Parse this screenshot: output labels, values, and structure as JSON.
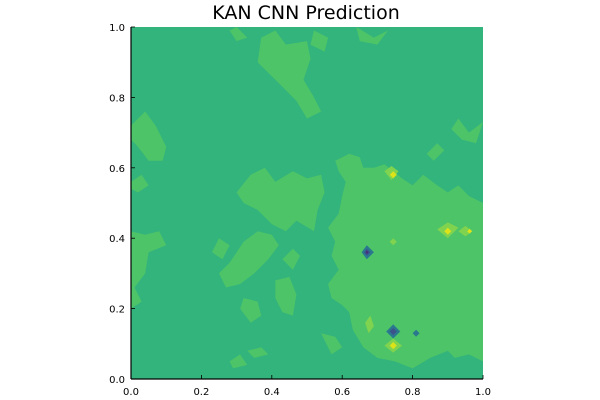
{
  "chart_data": {
    "type": "heatmap",
    "subtype": "filled-contour",
    "title": "KAN CNN Prediction",
    "xlabel": "",
    "ylabel": "",
    "xlim": [
      0.0,
      1.0
    ],
    "ylim": [
      0.0,
      1.0
    ],
    "xticks": [
      "0.0",
      "0.2",
      "0.4",
      "0.6",
      "0.8",
      "1.0"
    ],
    "yticks": [
      "0.0",
      "0.2",
      "0.4",
      "0.6",
      "0.8",
      "1.0"
    ],
    "grid": false,
    "colormap": "viridis",
    "colors": {
      "background_level": "#32b47c",
      "raised_level": "#4ec468",
      "high_level": "#7fd34e",
      "peak_level": "#dce319",
      "low_level": "#2a788e",
      "very_low_level": "#3b528b",
      "min_level": "#472c7a"
    },
    "regions": [
      {
        "level": "raised",
        "points": [
          [
            0.37,
            0.97
          ],
          [
            0.41,
            0.99
          ],
          [
            0.44,
            0.95
          ],
          [
            0.5,
            0.96
          ],
          [
            0.51,
            0.91
          ],
          [
            0.49,
            0.85
          ],
          [
            0.52,
            0.8
          ],
          [
            0.54,
            0.76
          ],
          [
            0.5,
            0.74
          ],
          [
            0.47,
            0.79
          ],
          [
            0.43,
            0.83
          ],
          [
            0.4,
            0.86
          ],
          [
            0.36,
            0.9
          ]
        ]
      },
      {
        "level": "raised",
        "points": [
          [
            0.52,
            0.99
          ],
          [
            0.56,
            0.97
          ],
          [
            0.55,
            0.93
          ],
          [
            0.51,
            0.95
          ]
        ]
      },
      {
        "level": "raised",
        "points": [
          [
            0.3,
            1.0
          ],
          [
            0.33,
            0.97
          ],
          [
            0.3,
            0.96
          ],
          [
            0.28,
            0.99
          ]
        ]
      },
      {
        "level": "raised",
        "points": [
          [
            0.64,
            1.0
          ],
          [
            0.69,
            0.97
          ],
          [
            0.73,
            0.99
          ],
          [
            0.7,
            0.95
          ],
          [
            0.65,
            0.96
          ]
        ]
      },
      {
        "level": "raised",
        "points": [
          [
            0.0,
            0.72
          ],
          [
            0.04,
            0.76
          ],
          [
            0.07,
            0.72
          ],
          [
            0.1,
            0.66
          ],
          [
            0.09,
            0.62
          ],
          [
            0.05,
            0.62
          ],
          [
            0.02,
            0.66
          ],
          [
            0.0,
            0.68
          ]
        ]
      },
      {
        "level": "raised",
        "points": [
          [
            0.93,
            0.74
          ],
          [
            0.96,
            0.7
          ],
          [
            1.0,
            0.73
          ],
          [
            0.98,
            0.67
          ],
          [
            0.94,
            0.68
          ],
          [
            0.91,
            0.71
          ]
        ]
      },
      {
        "level": "raised",
        "points": [
          [
            0.0,
            0.56
          ],
          [
            0.03,
            0.58
          ],
          [
            0.05,
            0.55
          ],
          [
            0.02,
            0.53
          ],
          [
            0.0,
            0.54
          ]
        ]
      },
      {
        "level": "raised",
        "points": [
          [
            0.34,
            0.58
          ],
          [
            0.38,
            0.6
          ],
          [
            0.41,
            0.56
          ],
          [
            0.46,
            0.59
          ],
          [
            0.5,
            0.57
          ],
          [
            0.54,
            0.58
          ],
          [
            0.55,
            0.53
          ],
          [
            0.53,
            0.48
          ],
          [
            0.52,
            0.42
          ],
          [
            0.47,
            0.45
          ],
          [
            0.44,
            0.42
          ],
          [
            0.4,
            0.44
          ],
          [
            0.36,
            0.48
          ],
          [
            0.32,
            0.5
          ],
          [
            0.3,
            0.53
          ]
        ]
      },
      {
        "level": "raised",
        "points": [
          [
            0.32,
            0.39
          ],
          [
            0.36,
            0.42
          ],
          [
            0.4,
            0.41
          ],
          [
            0.42,
            0.38
          ],
          [
            0.39,
            0.34
          ],
          [
            0.35,
            0.3
          ],
          [
            0.31,
            0.27
          ],
          [
            0.27,
            0.26
          ],
          [
            0.25,
            0.3
          ],
          [
            0.28,
            0.33
          ],
          [
            0.3,
            0.36
          ]
        ]
      },
      {
        "level": "raised",
        "points": [
          [
            0.25,
            0.4
          ],
          [
            0.28,
            0.38
          ],
          [
            0.26,
            0.34
          ],
          [
            0.23,
            0.36
          ]
        ]
      },
      {
        "level": "raised",
        "points": [
          [
            0.43,
            0.34
          ],
          [
            0.46,
            0.37
          ],
          [
            0.48,
            0.35
          ],
          [
            0.46,
            0.31
          ]
        ]
      },
      {
        "level": "raised",
        "points": [
          [
            0.41,
            0.28
          ],
          [
            0.45,
            0.29
          ],
          [
            0.47,
            0.24
          ],
          [
            0.46,
            0.18
          ],
          [
            0.43,
            0.19
          ],
          [
            0.41,
            0.23
          ]
        ]
      },
      {
        "level": "raised",
        "points": [
          [
            0.32,
            0.23
          ],
          [
            0.36,
            0.22
          ],
          [
            0.37,
            0.18
          ],
          [
            0.34,
            0.16
          ],
          [
            0.31,
            0.2
          ]
        ]
      },
      {
        "level": "raised",
        "points": [
          [
            0.0,
            0.42
          ],
          [
            0.04,
            0.41
          ],
          [
            0.08,
            0.42
          ],
          [
            0.1,
            0.38
          ],
          [
            0.05,
            0.36
          ],
          [
            0.04,
            0.3
          ],
          [
            0.01,
            0.26
          ],
          [
            0.03,
            0.22
          ],
          [
            0.0,
            0.2
          ]
        ]
      },
      {
        "level": "raised",
        "points": [
          [
            0.33,
            0.08
          ],
          [
            0.37,
            0.09
          ],
          [
            0.39,
            0.07
          ],
          [
            0.35,
            0.06
          ]
        ]
      },
      {
        "level": "raised",
        "points": [
          [
            0.58,
            0.62
          ],
          [
            0.62,
            0.64
          ],
          [
            0.65,
            0.63
          ],
          [
            0.66,
            0.6
          ],
          [
            0.69,
            0.6
          ],
          [
            0.72,
            0.61
          ],
          [
            0.77,
            0.57
          ],
          [
            0.8,
            0.55
          ],
          [
            0.83,
            0.58
          ],
          [
            0.87,
            0.55
          ],
          [
            0.9,
            0.53
          ],
          [
            0.93,
            0.55
          ],
          [
            0.96,
            0.52
          ],
          [
            1.0,
            0.5
          ],
          [
            1.0,
            0.05
          ],
          [
            0.96,
            0.07
          ],
          [
            0.92,
            0.06
          ],
          [
            0.9,
            0.08
          ],
          [
            0.85,
            0.06
          ],
          [
            0.8,
            0.03
          ],
          [
            0.75,
            0.05
          ],
          [
            0.7,
            0.06
          ],
          [
            0.66,
            0.09
          ],
          [
            0.63,
            0.14
          ],
          [
            0.62,
            0.19
          ],
          [
            0.6,
            0.21
          ],
          [
            0.57,
            0.23
          ],
          [
            0.56,
            0.27
          ],
          [
            0.59,
            0.31
          ],
          [
            0.57,
            0.35
          ],
          [
            0.58,
            0.39
          ],
          [
            0.56,
            0.43
          ],
          [
            0.59,
            0.47
          ],
          [
            0.6,
            0.52
          ],
          [
            0.61,
            0.56
          ],
          [
            0.59,
            0.59
          ]
        ]
      },
      {
        "level": "raised",
        "points": [
          [
            0.84,
            0.64
          ],
          [
            0.87,
            0.67
          ],
          [
            0.89,
            0.65
          ],
          [
            0.86,
            0.62
          ]
        ]
      },
      {
        "level": "raised",
        "points": [
          [
            0.54,
            0.13
          ],
          [
            0.58,
            0.12
          ],
          [
            0.6,
            0.09
          ],
          [
            0.57,
            0.07
          ]
        ]
      },
      {
        "level": "raised",
        "points": [
          [
            0.28,
            0.05
          ],
          [
            0.31,
            0.07
          ],
          [
            0.33,
            0.04
          ],
          [
            0.29,
            0.03
          ]
        ]
      },
      {
        "level": "high",
        "points": [
          [
            0.72,
            0.59
          ],
          [
            0.74,
            0.605
          ],
          [
            0.76,
            0.59
          ],
          [
            0.74,
            0.565
          ]
        ]
      },
      {
        "level": "high",
        "points": [
          [
            0.87,
            0.425
          ],
          [
            0.9,
            0.445
          ],
          [
            0.93,
            0.43
          ],
          [
            0.9,
            0.4
          ]
        ]
      },
      {
        "level": "high",
        "points": [
          [
            0.93,
            0.42
          ],
          [
            0.95,
            0.435
          ],
          [
            0.97,
            0.42
          ],
          [
            0.95,
            0.405
          ]
        ]
      },
      {
        "level": "high",
        "points": [
          [
            0.665,
            0.16
          ],
          [
            0.68,
            0.18
          ],
          [
            0.69,
            0.15
          ],
          [
            0.675,
            0.13
          ]
        ]
      },
      {
        "level": "high",
        "points": [
          [
            0.72,
            0.095
          ],
          [
            0.745,
            0.115
          ],
          [
            0.77,
            0.095
          ],
          [
            0.745,
            0.075
          ]
        ]
      },
      {
        "level": "high",
        "points": [
          [
            0.735,
            0.39
          ],
          [
            0.745,
            0.4
          ],
          [
            0.755,
            0.39
          ],
          [
            0.745,
            0.38
          ]
        ]
      },
      {
        "level": "peak",
        "points": [
          [
            0.735,
            0.58
          ],
          [
            0.745,
            0.59
          ],
          [
            0.755,
            0.58
          ],
          [
            0.745,
            0.57
          ]
        ]
      },
      {
        "level": "peak",
        "points": [
          [
            0.89,
            0.42
          ],
          [
            0.9,
            0.43
          ],
          [
            0.91,
            0.42
          ],
          [
            0.9,
            0.41
          ]
        ]
      },
      {
        "level": "peak",
        "points": [
          [
            0.955,
            0.42
          ],
          [
            0.962,
            0.427
          ],
          [
            0.969,
            0.42
          ],
          [
            0.962,
            0.413
          ]
        ]
      },
      {
        "level": "peak",
        "points": [
          [
            0.735,
            0.095
          ],
          [
            0.745,
            0.105
          ],
          [
            0.755,
            0.095
          ],
          [
            0.745,
            0.085
          ]
        ]
      },
      {
        "level": "low",
        "points": [
          [
            0.655,
            0.36
          ],
          [
            0.67,
            0.38
          ],
          [
            0.69,
            0.36
          ],
          [
            0.67,
            0.34
          ]
        ]
      },
      {
        "level": "low",
        "points": [
          [
            0.725,
            0.135
          ],
          [
            0.745,
            0.155
          ],
          [
            0.765,
            0.135
          ],
          [
            0.745,
            0.115
          ]
        ]
      },
      {
        "level": "low",
        "points": [
          [
            0.8,
            0.13
          ],
          [
            0.81,
            0.14
          ],
          [
            0.82,
            0.13
          ],
          [
            0.81,
            0.12
          ]
        ]
      },
      {
        "level": "very_low",
        "points": [
          [
            0.662,
            0.36
          ],
          [
            0.67,
            0.37
          ],
          [
            0.68,
            0.36
          ],
          [
            0.67,
            0.35
          ]
        ]
      },
      {
        "level": "very_low",
        "points": [
          [
            0.735,
            0.135
          ],
          [
            0.745,
            0.145
          ],
          [
            0.755,
            0.135
          ],
          [
            0.745,
            0.125
          ]
        ]
      },
      {
        "level": "min",
        "points": [
          [
            0.667,
            0.36
          ],
          [
            0.67,
            0.365
          ],
          [
            0.675,
            0.36
          ],
          [
            0.67,
            0.355
          ]
        ]
      }
    ]
  }
}
